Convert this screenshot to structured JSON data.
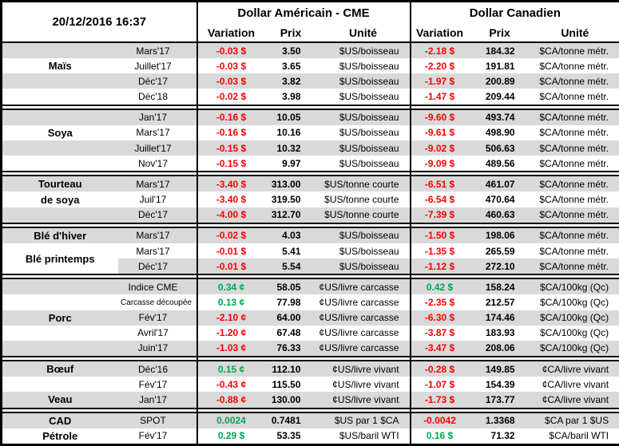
{
  "meta": {
    "timestamp": "20/12/2016 16:37"
  },
  "header": {
    "us_title": "Dollar Américain - CME",
    "ca_title": "Dollar Canadien",
    "col_variation": "Variation",
    "col_prix": "Prix",
    "col_unite": "Unité"
  },
  "colors": {
    "negative": "#FF0000",
    "positive": "#00A651",
    "stripe": "#D9D9D9",
    "border": "#000000"
  },
  "sections": [
    {
      "id": "mais",
      "rows": [
        {
          "name": "",
          "month": "Mars'17",
          "us_var": "-0.03 $",
          "us_var_tone": "neg",
          "us_prix": "3.50",
          "us_unit": "$US/boisseau",
          "ca_var": "-2.18 $",
          "ca_var_tone": "neg",
          "ca_prix": "184.32",
          "ca_unit": "$CA/tonne métr."
        },
        {
          "name": "Maïs",
          "month": "Juillet'17",
          "us_var": "-0.03 $",
          "us_var_tone": "neg",
          "us_prix": "3.65",
          "us_unit": "$US/boisseau",
          "ca_var": "-2.20 $",
          "ca_var_tone": "neg",
          "ca_prix": "191.81",
          "ca_unit": "$CA/tonne métr."
        },
        {
          "name": "",
          "month": "Déc'17",
          "us_var": "-0.03 $",
          "us_var_tone": "neg",
          "us_prix": "3.82",
          "us_unit": "$US/boisseau",
          "ca_var": "-1.97 $",
          "ca_var_tone": "neg",
          "ca_prix": "200.89",
          "ca_unit": "$CA/tonne métr."
        },
        {
          "name": "",
          "month": "Déc'18",
          "us_var": "-0.02 $",
          "us_var_tone": "neg",
          "us_prix": "3.98",
          "us_unit": "$US/boisseau",
          "ca_var": "-1.47 $",
          "ca_var_tone": "neg",
          "ca_prix": "209.44",
          "ca_unit": "$CA/tonne métr."
        }
      ]
    },
    {
      "id": "soya",
      "rows": [
        {
          "name": "",
          "month": "Jan'17",
          "us_var": "-0.16 $",
          "us_var_tone": "neg",
          "us_prix": "10.05",
          "us_unit": "$US/boisseau",
          "ca_var": "-9.60 $",
          "ca_var_tone": "neg",
          "ca_prix": "493.74",
          "ca_unit": "$CA/tonne métr."
        },
        {
          "name": "Soya",
          "month": "Mars'17",
          "us_var": "-0.16 $",
          "us_var_tone": "neg",
          "us_prix": "10.16",
          "us_unit": "$US/boisseau",
          "ca_var": "-9.61 $",
          "ca_var_tone": "neg",
          "ca_prix": "498.90",
          "ca_unit": "$CA/tonne métr."
        },
        {
          "name": "",
          "month": "Juillet'17",
          "us_var": "-0.15 $",
          "us_var_tone": "neg",
          "us_prix": "10.32",
          "us_unit": "$US/boisseau",
          "ca_var": "-9.02 $",
          "ca_var_tone": "neg",
          "ca_prix": "506.63",
          "ca_unit": "$CA/tonne métr."
        },
        {
          "name": "",
          "month": "Nov'17",
          "us_var": "-0.15 $",
          "us_var_tone": "neg",
          "us_prix": "9.97",
          "us_unit": "$US/boisseau",
          "ca_var": "-9.09 $",
          "ca_var_tone": "neg",
          "ca_prix": "489.56",
          "ca_unit": "$CA/tonne métr."
        }
      ]
    },
    {
      "id": "tourteau-de-soya",
      "rows": [
        {
          "name": "Tourteau",
          "month": "Mars'17",
          "us_var": "-3.40 $",
          "us_var_tone": "neg",
          "us_prix": "313.00",
          "us_unit": "$US/tonne courte",
          "ca_var": "-6.51 $",
          "ca_var_tone": "neg",
          "ca_prix": "461.07",
          "ca_unit": "$CA/tonne métr."
        },
        {
          "name": "de soya",
          "month": "Juil'17",
          "us_var": "-3.40 $",
          "us_var_tone": "neg",
          "us_prix": "319.50",
          "us_unit": "$US/tonne courte",
          "ca_var": "-6.54 $",
          "ca_var_tone": "neg",
          "ca_prix": "470.64",
          "ca_unit": "$CA/tonne métr."
        },
        {
          "name": "",
          "month": "Déc'17",
          "us_var": "-4.00 $",
          "us_var_tone": "neg",
          "us_prix": "312.70",
          "us_unit": "$US/tonne courte",
          "ca_var": "-7.39 $",
          "ca_var_tone": "neg",
          "ca_prix": "460.63",
          "ca_unit": "$CA/tonne métr."
        }
      ]
    },
    {
      "id": "ble",
      "rows": [
        {
          "name": "Blé d'hiver",
          "month": "Mars'17",
          "us_var": "-0.02 $",
          "us_var_tone": "neg",
          "us_prix": "4.03",
          "us_unit": "$US/boisseau",
          "ca_var": "-1.50 $",
          "ca_var_tone": "neg",
          "ca_prix": "198.06",
          "ca_unit": "$CA/tonne métr."
        },
        {
          "name": "Blé printemps",
          "name_rowspan": 2,
          "name_white": true,
          "month": "Mars'17",
          "us_var": "-0.01 $",
          "us_var_tone": "neg",
          "us_prix": "5.41",
          "us_unit": "$US/boisseau",
          "ca_var": "-1.35 $",
          "ca_var_tone": "neg",
          "ca_prix": "265.59",
          "ca_unit": "$CA/tonne métr."
        },
        {
          "skip_name": true,
          "month": "Déc'17",
          "us_var": "-0.01 $",
          "us_var_tone": "neg",
          "us_prix": "5.54",
          "us_unit": "$US/boisseau",
          "ca_var": "-1.12 $",
          "ca_var_tone": "neg",
          "ca_prix": "272.10",
          "ca_unit": "$CA/tonne métr."
        }
      ]
    },
    {
      "id": "porc",
      "rows": [
        {
          "name": "",
          "month": "Indice CME",
          "us_var": "0.34 ¢",
          "us_var_tone": "pos",
          "us_prix": "58.05",
          "us_unit": "¢US/livre carcasse",
          "ca_var": "0.42 $",
          "ca_var_tone": "pos",
          "ca_prix": "158.24",
          "ca_unit": "$CA/100kg (Qc)"
        },
        {
          "name": "",
          "month": "Carcasse découpée",
          "month_small": true,
          "us_var": "0.13 ¢",
          "us_var_tone": "pos",
          "us_prix": "77.98",
          "us_unit": "¢US/livre carcasse",
          "ca_var": "-2.35 $",
          "ca_var_tone": "neg",
          "ca_prix": "212.57",
          "ca_unit": "$CA/100kg (Qc)"
        },
        {
          "name": "Porc",
          "month": "Fév'17",
          "us_var": "-2.10 ¢",
          "us_var_tone": "neg",
          "us_prix": "64.00",
          "us_unit": "¢US/livre carcasse",
          "ca_var": "-6.30 $",
          "ca_var_tone": "neg",
          "ca_prix": "174.46",
          "ca_unit": "$CA/100kg (Qc)"
        },
        {
          "name": "",
          "month": "Avril'17",
          "us_var": "-1.20 ¢",
          "us_var_tone": "neg",
          "us_prix": "67.48",
          "us_unit": "¢US/livre carcasse",
          "ca_var": "-3.87 $",
          "ca_var_tone": "neg",
          "ca_prix": "183.93",
          "ca_unit": "$CA/100kg (Qc)"
        },
        {
          "name": "",
          "month": "Juin'17",
          "us_var": "-1.03 ¢",
          "us_var_tone": "neg",
          "us_prix": "76.33",
          "us_unit": "¢US/livre carcasse",
          "ca_var": "-3.47 $",
          "ca_var_tone": "neg",
          "ca_prix": "208.06",
          "ca_unit": "$CA/100kg (Qc)"
        }
      ]
    },
    {
      "id": "boeuf-veau",
      "rows": [
        {
          "name": "Bœuf",
          "month": "Déc'16",
          "us_var": "0.15 ¢",
          "us_var_tone": "pos",
          "us_prix": "112.10",
          "us_unit": "¢US/livre vivant",
          "ca_var": "-0.28 $",
          "ca_var_tone": "neg",
          "ca_prix": "149.85",
          "ca_unit": "¢CA/livre vivant"
        },
        {
          "name": "",
          "month": "Fév'17",
          "us_var": "-0.43 ¢",
          "us_var_tone": "neg",
          "us_prix": "115.50",
          "us_unit": "¢US/livre vivant",
          "ca_var": "-1.07 $",
          "ca_var_tone": "neg",
          "ca_prix": "154.39",
          "ca_unit": "¢CA/livre vivant"
        },
        {
          "name": "Veau",
          "month": "Jan'17",
          "us_var": "-0.88 ¢",
          "us_var_tone": "neg",
          "us_prix": "130.00",
          "us_unit": "¢US/livre vivant",
          "ca_var": "-1.73 $",
          "ca_var_tone": "neg",
          "ca_prix": "173.77",
          "ca_unit": "¢CA/livre vivant"
        }
      ]
    },
    {
      "id": "cad-petrole",
      "rows": [
        {
          "name": "CAD",
          "month": "SPOT",
          "us_var": "0.0024",
          "us_var_tone": "pos",
          "us_prix": "0.7481",
          "us_unit": "$US par 1 $CA",
          "ca_var": "-0.0042",
          "ca_var_tone": "neg",
          "ca_prix": "1.3368",
          "ca_unit": "$CA par 1 $US"
        },
        {
          "name": "Pétrole",
          "month": "Fév'17",
          "us_var": "0.29 $",
          "us_var_tone": "pos",
          "us_prix": "53.35",
          "us_unit": "$US/baril WTI",
          "ca_var": "0.16 $",
          "ca_var_tone": "pos",
          "ca_prix": "71.32",
          "ca_unit": "$CA/baril WTI"
        }
      ]
    }
  ]
}
